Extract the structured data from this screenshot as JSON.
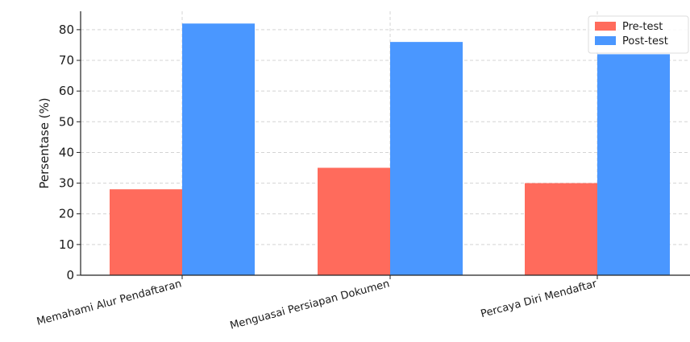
{
  "chart_data": {
    "type": "bar",
    "title": "",
    "ylabel": "Persentase (%)",
    "xlabel": "",
    "categories": [
      "Memahami Alur Pendaftaran",
      "Menguasai Persiapan Dokumen",
      "Percaya Diri Mendaftar"
    ],
    "series": [
      {
        "name": "Pre-test",
        "color": "#ff6b5c",
        "values": [
          28,
          35,
          30
        ]
      },
      {
        "name": "Post-test",
        "color": "#4a97ff",
        "values": [
          82,
          76,
          72
        ]
      }
    ],
    "ylim": [
      0,
      86
    ],
    "yticks": [
      0,
      10,
      20,
      30,
      40,
      50,
      60,
      70,
      80
    ],
    "grid": true,
    "legend": "top-right"
  }
}
